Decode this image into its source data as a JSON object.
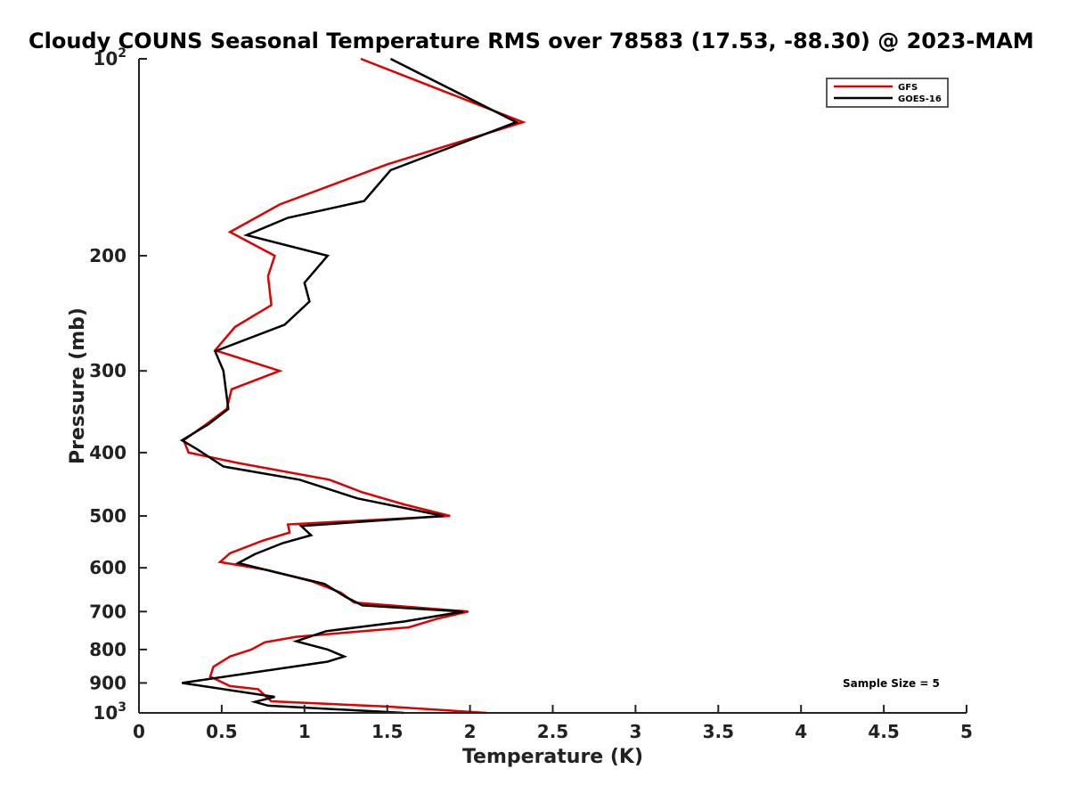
{
  "chart_data": {
    "type": "line",
    "title": "Cloudy COUNS Seasonal Temperature RMS over 78583 (17.53, -88.30) @ 2023-MAM",
    "xlabel": "Temperature (K)",
    "ylabel": "Pressure (mb)",
    "xlim": [
      0,
      5
    ],
    "ylim": [
      100,
      1000
    ],
    "yscale": "log",
    "y_reversed": true,
    "grid": false,
    "legend_position": "top-right",
    "x_ticks": [
      "0",
      "0.5",
      "1",
      "1.5",
      "2",
      "2.5",
      "3",
      "3.5",
      "4",
      "4.5",
      "5"
    ],
    "x_tick_values": [
      0,
      0.5,
      1,
      1.5,
      2,
      2.5,
      3,
      3.5,
      4,
      4.5,
      5
    ],
    "y_ticks": [
      {
        "value": 100,
        "base": "10",
        "exp": "2"
      },
      {
        "value": 200,
        "label": "200"
      },
      {
        "value": 300,
        "label": "300"
      },
      {
        "value": 400,
        "label": "400"
      },
      {
        "value": 500,
        "label": "500"
      },
      {
        "value": 600,
        "label": "600"
      },
      {
        "value": 700,
        "label": "700"
      },
      {
        "value": 800,
        "label": "800"
      },
      {
        "value": 900,
        "label": "900"
      },
      {
        "value": 1000,
        "base": "10",
        "exp": "3"
      }
    ],
    "annotation": "Sample Size = 5",
    "series": [
      {
        "name": "GFS",
        "color": "#e00000",
        "points": [
          [
            1.34,
            100
          ],
          [
            2.32,
            125
          ],
          [
            1.5,
            145
          ],
          [
            0.85,
            167
          ],
          [
            0.55,
            184
          ],
          [
            0.82,
            200
          ],
          [
            0.78,
            215
          ],
          [
            0.8,
            238
          ],
          [
            0.58,
            257
          ],
          [
            0.46,
            279
          ],
          [
            0.85,
            300
          ],
          [
            0.56,
            320
          ],
          [
            0.53,
            343
          ],
          [
            0.42,
            360
          ],
          [
            0.27,
            383
          ],
          [
            0.3,
            400
          ],
          [
            0.6,
            415
          ],
          [
            1.15,
            440
          ],
          [
            1.35,
            460
          ],
          [
            1.6,
            480
          ],
          [
            1.88,
            500
          ],
          [
            0.9,
            515
          ],
          [
            0.91,
            530
          ],
          [
            0.75,
            545
          ],
          [
            0.55,
            570
          ],
          [
            0.49,
            588
          ],
          [
            0.78,
            605
          ],
          [
            1.05,
            630
          ],
          [
            1.22,
            655
          ],
          [
            1.3,
            678
          ],
          [
            1.99,
            700
          ],
          [
            1.8,
            718
          ],
          [
            1.63,
            740
          ],
          [
            0.95,
            765
          ],
          [
            0.76,
            780
          ],
          [
            0.68,
            800
          ],
          [
            0.55,
            820
          ],
          [
            0.45,
            850
          ],
          [
            0.43,
            880
          ],
          [
            0.55,
            910
          ],
          [
            0.72,
            920
          ],
          [
            0.8,
            960
          ],
          [
            1.5,
            978
          ],
          [
            2.1,
            1000
          ]
        ]
      },
      {
        "name": "GOES-16",
        "color": "#000000",
        "points": [
          [
            1.52,
            100
          ],
          [
            2.28,
            125
          ],
          [
            1.52,
            148
          ],
          [
            1.36,
            165
          ],
          [
            0.9,
            175
          ],
          [
            0.65,
            186
          ],
          [
            1.14,
            200
          ],
          [
            1.0,
            220
          ],
          [
            1.03,
            235
          ],
          [
            0.88,
            255
          ],
          [
            0.46,
            280
          ],
          [
            0.51,
            300
          ],
          [
            0.54,
            343
          ],
          [
            0.42,
            362
          ],
          [
            0.26,
            383
          ],
          [
            0.35,
            395
          ],
          [
            0.51,
            420
          ],
          [
            0.97,
            440
          ],
          [
            1.32,
            470
          ],
          [
            1.84,
            500
          ],
          [
            0.98,
            518
          ],
          [
            1.04,
            535
          ],
          [
            0.87,
            550
          ],
          [
            0.7,
            572
          ],
          [
            0.6,
            590
          ],
          [
            0.83,
            610
          ],
          [
            1.12,
            635
          ],
          [
            1.25,
            665
          ],
          [
            1.35,
            685
          ],
          [
            1.96,
            700
          ],
          [
            1.6,
            725
          ],
          [
            1.13,
            750
          ],
          [
            0.95,
            777
          ],
          [
            1.14,
            800
          ],
          [
            1.24,
            820
          ],
          [
            1.14,
            835
          ],
          [
            0.26,
            900
          ],
          [
            0.82,
            945
          ],
          [
            0.7,
            962
          ],
          [
            0.78,
            975
          ],
          [
            1.6,
            1000
          ]
        ]
      }
    ]
  }
}
